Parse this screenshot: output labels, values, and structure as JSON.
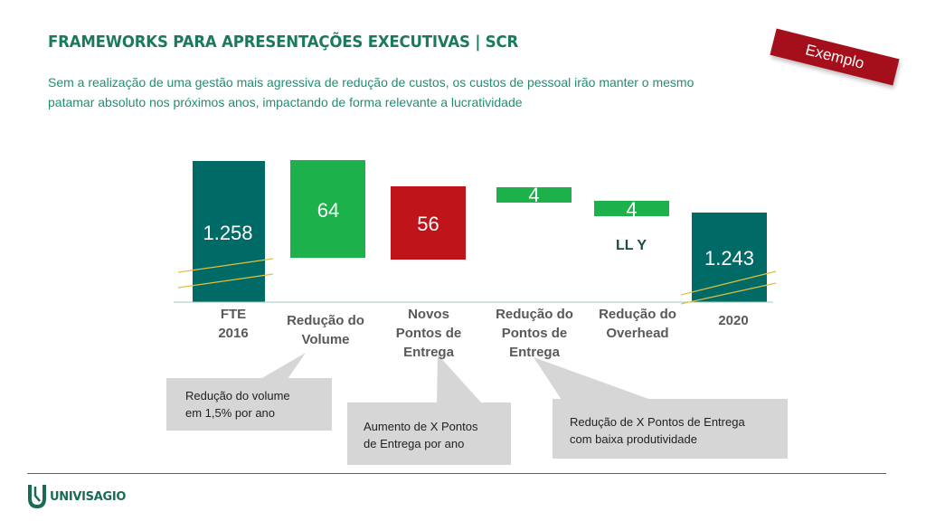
{
  "header": {
    "title": "FRAMEWORKS PARA APRESENTAÇÕES EXECUTIVAS | SCR",
    "subtitle": "Sem a realização de uma gestão mais agressiva de redução de custos, os custos de pessoal irão manter o mesmo patamar absoluto nos próximos anos, impactando de forma relevante a lucratividade"
  },
  "badge": {
    "label": "Exemplo"
  },
  "chart_data": {
    "type": "bar",
    "subtype": "waterfall",
    "categories": [
      "FTE 2016",
      "Redução do Volume",
      "Novos Pontos de Entrega",
      "Redução do Pontos de Entrega",
      "Redução do Overhead",
      "2020"
    ],
    "category_lines": [
      [
        "FTE",
        "2016"
      ],
      [
        "Redução do",
        "Volume"
      ],
      [
        "Novos",
        "Pontos de",
        "Entrega"
      ],
      [
        "Redução do",
        "Pontos de",
        "Entrega"
      ],
      [
        "Redução do",
        "Overhead"
      ],
      [
        "2020"
      ]
    ],
    "values": [
      1258,
      -64,
      56,
      -4,
      -4,
      1243
    ],
    "value_labels": [
      "1.258",
      "64",
      "56",
      "4",
      "4",
      "1.243"
    ],
    "bar_kinds": [
      "total",
      "decrease",
      "increase",
      "decrease",
      "decrease",
      "total"
    ],
    "annotation": "LL Y",
    "axis_break": true,
    "colors": {
      "total": "#006b66",
      "decrease": "#1db14b",
      "increase": "#c0141b",
      "break": "#e3c03a"
    }
  },
  "callouts": [
    {
      "lines": [
        "Redução do volume",
        "em 1,5% por ano"
      ]
    },
    {
      "lines": [
        "Aumento de X Pontos",
        "de Entrega por ano"
      ]
    },
    {
      "lines": [
        "Redução de X Pontos de Entrega",
        "com baixa produtividade"
      ]
    }
  ],
  "footer": {
    "logo_text": "UNIVISAGIO",
    "logo_icon": "univisagio-logo-icon"
  }
}
